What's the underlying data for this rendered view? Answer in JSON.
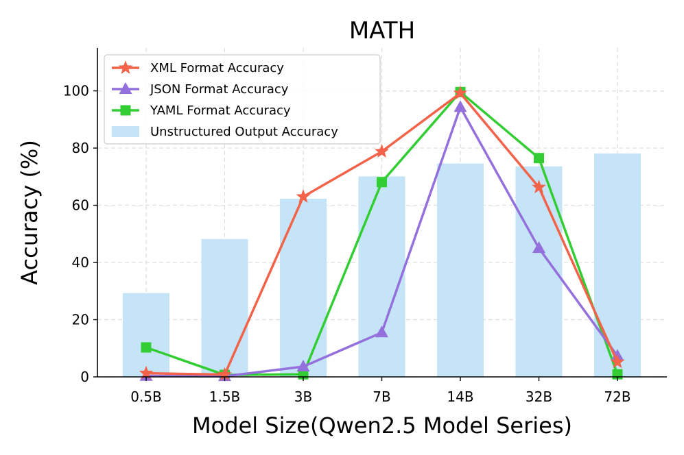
{
  "chart_data": {
    "type": "bar+line",
    "title": "MATH",
    "xlabel": "Model Size(Qwen2.5 Model Series)",
    "ylabel": "Accuracy (%)",
    "ylim": [
      0,
      115
    ],
    "yticks": [
      0,
      20,
      40,
      60,
      80,
      100
    ],
    "categories": [
      "0.5B",
      "1.5B",
      "3B",
      "7B",
      "14B",
      "32B",
      "72B"
    ],
    "grid": true,
    "legend_position": "top-left",
    "bar_series": {
      "name": "Unstructured Output Accuracy",
      "color": "#c6e4f7",
      "values": [
        29.3,
        48.2,
        62.3,
        70.1,
        74.6,
        73.6,
        78.1
      ]
    },
    "line_series": [
      {
        "name": "XML Format Accuracy",
        "color": "#f2634a",
        "marker": "star",
        "values": [
          1.3,
          0.8,
          63.0,
          78.8,
          99.2,
          66.3,
          5.2
        ]
      },
      {
        "name": "JSON Format Accuracy",
        "color": "#9370db",
        "marker": "triangle",
        "values": [
          0.3,
          0.2,
          3.6,
          15.5,
          94.3,
          45.0,
          7.3
        ]
      },
      {
        "name": "YAML Format Accuracy",
        "color": "#32cd32",
        "marker": "square",
        "values": [
          10.3,
          0.7,
          0.9,
          68.1,
          99.6,
          76.5,
          0.9
        ]
      }
    ]
  }
}
